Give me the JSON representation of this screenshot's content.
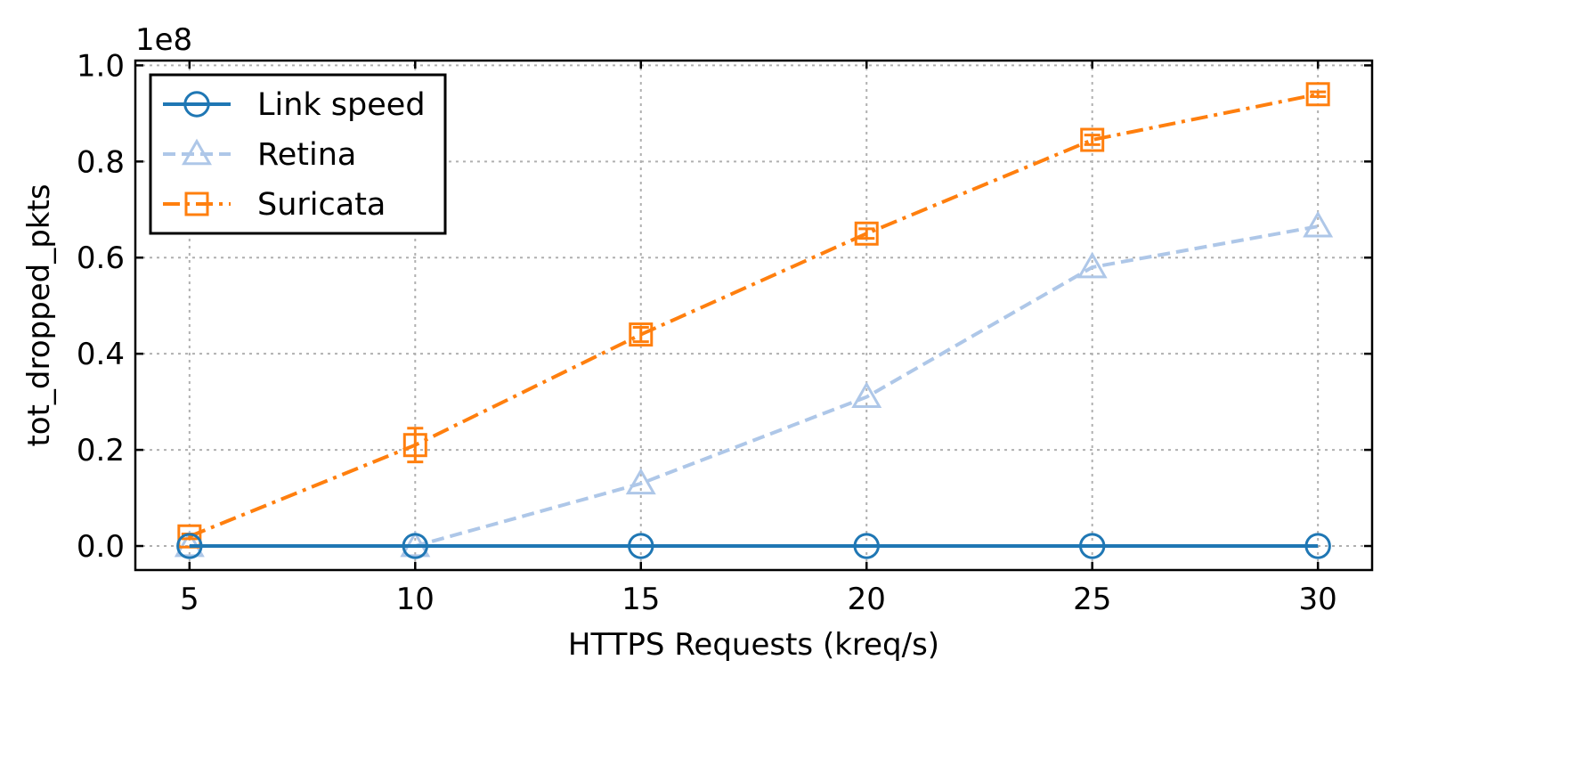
{
  "chart_data": {
    "type": "line",
    "xlabel": "HTTPS Requests (kreq/s)",
    "ylabel": "tot_dropped_pkts",
    "y_offset_label": "1e8",
    "y_scale": 100000000,
    "x": [
      5,
      10,
      15,
      20,
      25,
      30
    ],
    "x_ticks": [
      "5",
      "10",
      "15",
      "20",
      "25",
      "30"
    ],
    "y_ticks": [
      "0.0",
      "0.2",
      "0.4",
      "0.6",
      "0.8",
      "1.0"
    ],
    "xlim": [
      3.8,
      31.2
    ],
    "ylim": [
      -5000000,
      101000000
    ],
    "grid": true,
    "legend": "upper-left",
    "series": [
      {
        "name": "Link speed",
        "color": "#1f77b4",
        "marker": "circle",
        "linestyle": "solid",
        "values": [
          0,
          0,
          0,
          0,
          0,
          0
        ],
        "errors": [
          0,
          0,
          0,
          0,
          0,
          0
        ]
      },
      {
        "name": "Retina",
        "color": "#aec7e8",
        "marker": "triangle",
        "linestyle": "dashed",
        "values": [
          0,
          0,
          13000000,
          31000000,
          58000000,
          66500000
        ],
        "errors": [
          0,
          0,
          0,
          0,
          0,
          0
        ]
      },
      {
        "name": "Suricata",
        "color": "#ff7f0e",
        "marker": "square",
        "linestyle": "dashdot",
        "values": [
          2000000,
          21000000,
          44000000,
          65000000,
          84500000,
          94000000
        ],
        "errors": [
          500000,
          3500000,
          1500000,
          1000000,
          1000000,
          500000
        ]
      }
    ]
  }
}
